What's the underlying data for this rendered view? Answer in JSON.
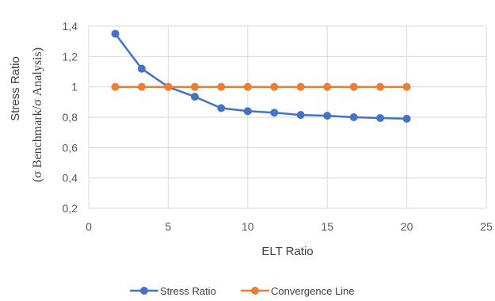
{
  "chart_data": {
    "type": "line",
    "title": "",
    "xlabel": "ELT Ratio",
    "ylabel_line1": "Stress Ratio",
    "ylabel_line2": "(σ Benchmark/σ  Analysis)",
    "xlim": [
      0,
      25
    ],
    "ylim": [
      0.2,
      1.4
    ],
    "x_ticks": [
      0,
      5,
      10,
      15,
      20,
      25
    ],
    "y_ticks": [
      0.2,
      0.4,
      0.6,
      0.8,
      1,
      1.2,
      1.4
    ],
    "x_tick_labels": [
      "0",
      "5",
      "10",
      "15",
      "20",
      "25"
    ],
    "y_tick_labels": [
      "0,2",
      "0,4",
      "0,6",
      "0,8",
      "1",
      "1,2",
      "1,4"
    ],
    "grid": true,
    "legend_position": "bottom",
    "series": [
      {
        "name": "Stress Ratio",
        "color": "#4472c4",
        "x": [
          1.67,
          3.33,
          5,
          6.67,
          8.33,
          10,
          11.67,
          13.33,
          15,
          16.67,
          18.33,
          20
        ],
        "y": [
          1.35,
          1.12,
          1.0,
          0.935,
          0.86,
          0.84,
          0.83,
          0.815,
          0.81,
          0.8,
          0.795,
          0.79
        ]
      },
      {
        "name": "Convergence Line",
        "color": "#ed7d31",
        "x": [
          1.67,
          3.33,
          5,
          6.67,
          8.33,
          10,
          11.67,
          13.33,
          15,
          16.67,
          18.33,
          20
        ],
        "y": [
          1,
          1,
          1,
          1,
          1,
          1,
          1,
          1,
          1,
          1,
          1,
          1
        ]
      }
    ]
  }
}
